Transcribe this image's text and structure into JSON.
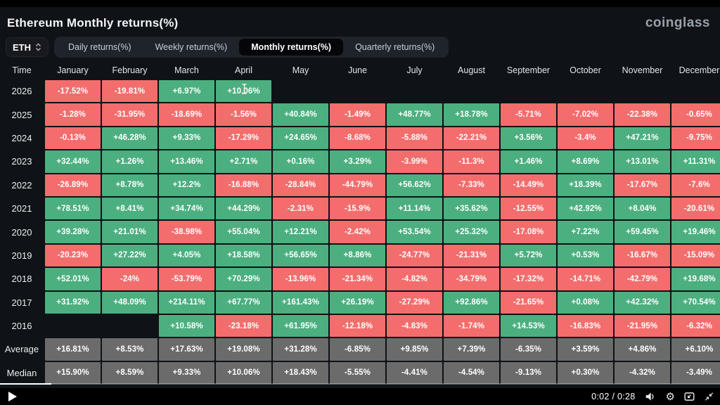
{
  "title": "Ethereum Monthly returns(%)",
  "brand": "coinglass",
  "controls": {
    "symbol": "ETH",
    "tabs": [
      {
        "label": "Daily returns(%)",
        "active": false
      },
      {
        "label": "Weekly returns(%)",
        "active": false
      },
      {
        "label": "Monthly returns(%)",
        "active": true
      },
      {
        "label": "Quarterly returns(%)",
        "active": false
      }
    ]
  },
  "table": {
    "time_header": "Time",
    "months": [
      "January",
      "February",
      "March",
      "April",
      "May",
      "June",
      "July",
      "August",
      "September",
      "October",
      "November",
      "December"
    ],
    "rows": [
      {
        "label": "2026",
        "summary": false,
        "values": [
          "-17.52%",
          "-19.81%",
          "+6.97%",
          "+10.06%",
          null,
          null,
          null,
          null,
          null,
          null,
          null,
          null
        ]
      },
      {
        "label": "2025",
        "summary": false,
        "values": [
          "-1.28%",
          "-31.95%",
          "-18.69%",
          "-1.56%",
          "+40.84%",
          "-1.49%",
          "+48.77%",
          "+18.78%",
          "-5.71%",
          "-7.02%",
          "-22.38%",
          "-0.65%"
        ]
      },
      {
        "label": "2024",
        "summary": false,
        "values": [
          "-0.13%",
          "+46.28%",
          "+9.33%",
          "-17.29%",
          "+24.65%",
          "-8.68%",
          "-5.88%",
          "-22.21%",
          "+3.56%",
          "-3.4%",
          "+47.21%",
          "-9.75%"
        ]
      },
      {
        "label": "2023",
        "summary": false,
        "values": [
          "+32.44%",
          "+1.26%",
          "+13.46%",
          "+2.71%",
          "+0.16%",
          "+3.29%",
          "-3.99%",
          "-11.3%",
          "+1.46%",
          "+8.69%",
          "+13.01%",
          "+11.31%"
        ]
      },
      {
        "label": "2022",
        "summary": false,
        "values": [
          "-26.89%",
          "+8.78%",
          "+12.2%",
          "-16.88%",
          "-28.84%",
          "-44.79%",
          "+56.62%",
          "-7.33%",
          "-14.49%",
          "+18.39%",
          "-17.67%",
          "-7.6%"
        ]
      },
      {
        "label": "2021",
        "summary": false,
        "values": [
          "+78.51%",
          "+8.41%",
          "+34.74%",
          "+44.29%",
          "-2.31%",
          "-15.9%",
          "+11.14%",
          "+35.62%",
          "-12.55%",
          "+42.92%",
          "+8.04%",
          "-20.61%"
        ]
      },
      {
        "label": "2020",
        "summary": false,
        "values": [
          "+39.28%",
          "+21.01%",
          "-38.98%",
          "+55.04%",
          "+12.21%",
          "-2.42%",
          "+53.54%",
          "+25.32%",
          "-17.08%",
          "+7.22%",
          "+59.45%",
          "+19.46%"
        ]
      },
      {
        "label": "2019",
        "summary": false,
        "values": [
          "-20.23%",
          "+27.22%",
          "+4.05%",
          "+18.58%",
          "+56.65%",
          "+8.86%",
          "-24.77%",
          "-21.31%",
          "+5.72%",
          "+0.53%",
          "-16.67%",
          "-15.09%"
        ]
      },
      {
        "label": "2018",
        "summary": false,
        "values": [
          "+52.01%",
          "-24%",
          "-53.79%",
          "+70.29%",
          "-13.96%",
          "-21.34%",
          "-4.82%",
          "-34.79%",
          "-17.32%",
          "-14.71%",
          "-42.79%",
          "+19.68%"
        ]
      },
      {
        "label": "2017",
        "summary": false,
        "values": [
          "+31.92%",
          "+48.09%",
          "+214.11%",
          "+67.77%",
          "+161.43%",
          "+26.19%",
          "-27.29%",
          "+92.86%",
          "-21.65%",
          "+0.08%",
          "+42.32%",
          "+70.54%"
        ]
      },
      {
        "label": "2016",
        "summary": false,
        "values": [
          null,
          null,
          "+10.58%",
          "-23.18%",
          "+61.95%",
          "-12.18%",
          "-4.83%",
          "-1.74%",
          "+14.53%",
          "-16.83%",
          "-21.95%",
          "-6.32%"
        ]
      },
      {
        "label": "Average",
        "summary": true,
        "values": [
          "+16.81%",
          "+8.53%",
          "+17.63%",
          "+19.08%",
          "+31.28%",
          "-6.85%",
          "+9.85%",
          "+7.39%",
          "-6.35%",
          "+3.59%",
          "+4.86%",
          "+6.10%"
        ]
      },
      {
        "label": "Median",
        "summary": true,
        "values": [
          "+15.90%",
          "+8.59%",
          "+9.33%",
          "+10.06%",
          "+18.43%",
          "-5.55%",
          "-4.41%",
          "-4.54%",
          "-9.13%",
          "+0.30%",
          "-4.32%",
          "-3.49%"
        ]
      }
    ]
  },
  "player": {
    "time_display": "0:02 / 0:28",
    "current_time": "0:02",
    "duration": "0:28",
    "progress_percent": 7.1
  },
  "colors": {
    "background": "#0f1216",
    "positive_cell": "#4caf80",
    "negative_cell": "#f36d6d",
    "summary_cell": "#6b6b6b",
    "brand_text": "#99a1ab"
  }
}
